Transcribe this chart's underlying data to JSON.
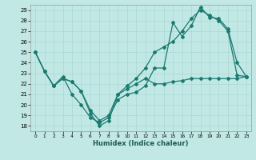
{
  "xlabel": "Humidex (Indice chaleur)",
  "xlim": [
    -0.5,
    23.5
  ],
  "ylim": [
    17.5,
    29.5
  ],
  "yticks": [
    18,
    19,
    20,
    21,
    22,
    23,
    24,
    25,
    26,
    27,
    28,
    29
  ],
  "xticks": [
    0,
    1,
    2,
    3,
    4,
    5,
    6,
    7,
    8,
    9,
    10,
    11,
    12,
    13,
    14,
    15,
    16,
    17,
    18,
    19,
    20,
    21,
    22,
    23
  ],
  "background_color": "#c2e8e5",
  "grid_color": "#a8d8d4",
  "line_color": "#1a7a70",
  "line1_x": [
    0,
    1,
    2,
    3,
    4,
    5,
    6,
    7,
    8,
    9,
    10,
    11,
    12,
    13,
    14,
    15,
    16,
    17,
    18,
    19,
    20,
    21,
    22,
    23
  ],
  "line1_y": [
    25,
    23.2,
    21.8,
    22.5,
    22.2,
    21.3,
    19.2,
    18.0,
    18.5,
    21.0,
    21.5,
    22.0,
    22.5,
    22.0,
    22.0,
    22.2,
    22.3,
    22.5,
    22.5,
    22.5,
    22.5,
    22.5,
    22.5,
    22.7
  ],
  "line2_x": [
    0,
    1,
    2,
    3,
    4,
    5,
    6,
    7,
    8,
    9,
    10,
    11,
    12,
    13,
    14,
    15,
    16,
    17,
    18,
    19,
    20,
    21,
    22,
    23
  ],
  "line2_y": [
    25,
    23.2,
    21.8,
    22.7,
    21.0,
    20.0,
    18.8,
    18.3,
    18.8,
    20.5,
    21.0,
    21.2,
    21.8,
    23.5,
    23.5,
    27.8,
    26.5,
    27.5,
    29.3,
    28.3,
    28.2,
    27.2,
    24.0,
    22.7
  ],
  "line3_x": [
    0,
    1,
    2,
    3,
    4,
    5,
    6,
    7,
    8,
    9,
    10,
    11,
    12,
    13,
    14,
    15,
    16,
    17,
    18,
    19,
    20,
    21,
    22,
    23
  ],
  "line3_y": [
    25,
    23.2,
    21.8,
    22.5,
    22.2,
    21.3,
    19.5,
    18.5,
    19.0,
    21.0,
    21.8,
    22.5,
    23.5,
    25.0,
    25.5,
    26.0,
    27.0,
    28.2,
    29.0,
    28.5,
    28.0,
    27.0,
    22.8,
    22.7
  ]
}
